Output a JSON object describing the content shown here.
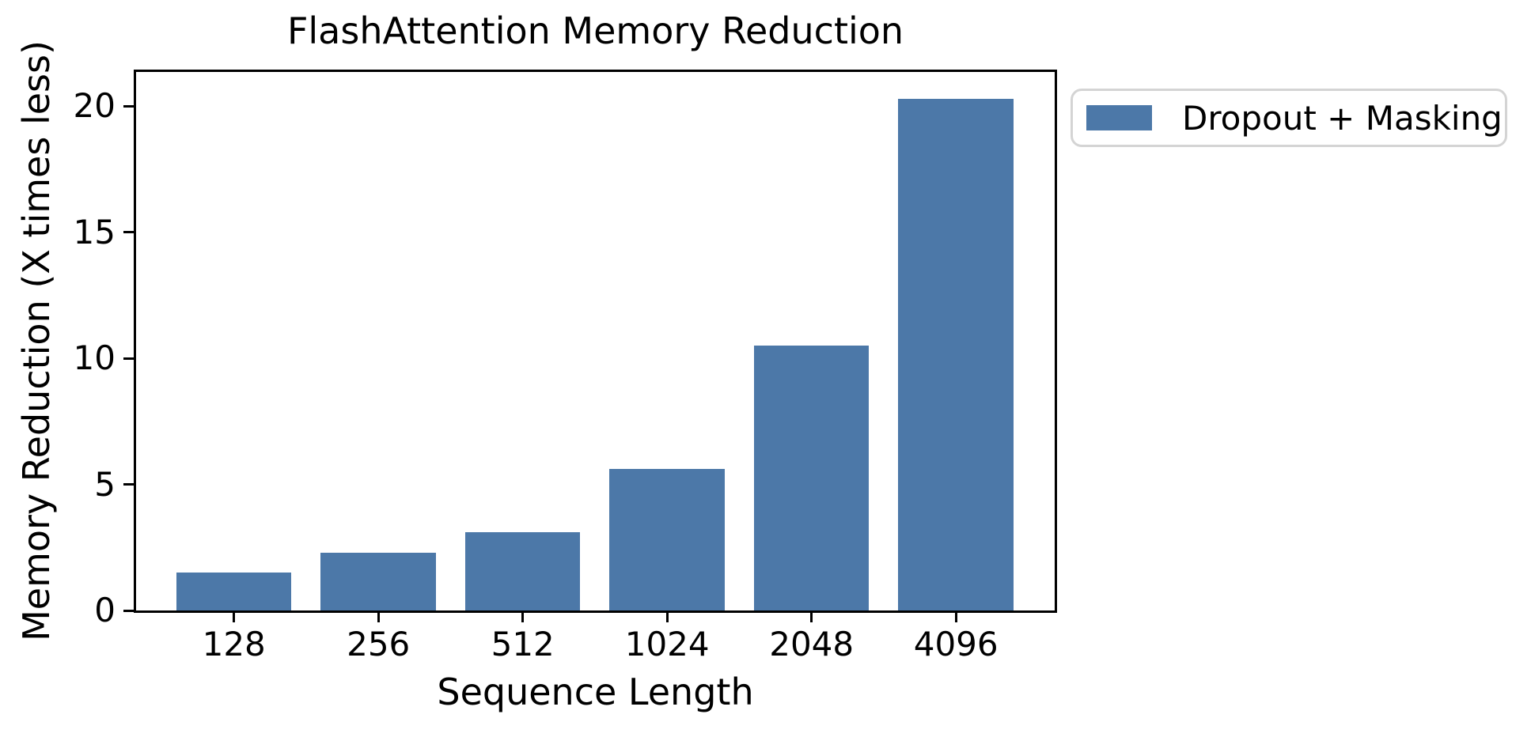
{
  "chart_data": {
    "type": "bar",
    "title": "FlashAttention Memory Reduction",
    "xlabel": "Sequence Length",
    "ylabel": "Memory Reduction (X times less)",
    "categories": [
      "128",
      "256",
      "512",
      "1024",
      "2048",
      "4096"
    ],
    "series": [
      {
        "name": "Dropout + Masking",
        "values": [
          1.5,
          2.3,
          3.1,
          5.6,
          10.5,
          20.3
        ]
      }
    ],
    "yticks": [
      0,
      5,
      10,
      15,
      20
    ],
    "ylim": [
      0,
      21.35
    ],
    "grid": false,
    "bar_color": "#4C78A8",
    "legend": {
      "label": "Dropout + Masking",
      "position": "outside-upper-right"
    }
  },
  "colors": {
    "background": "#ffffff",
    "bar": "#4C78A8",
    "axis": "#000000",
    "legend_border": "#d4d4d4"
  }
}
